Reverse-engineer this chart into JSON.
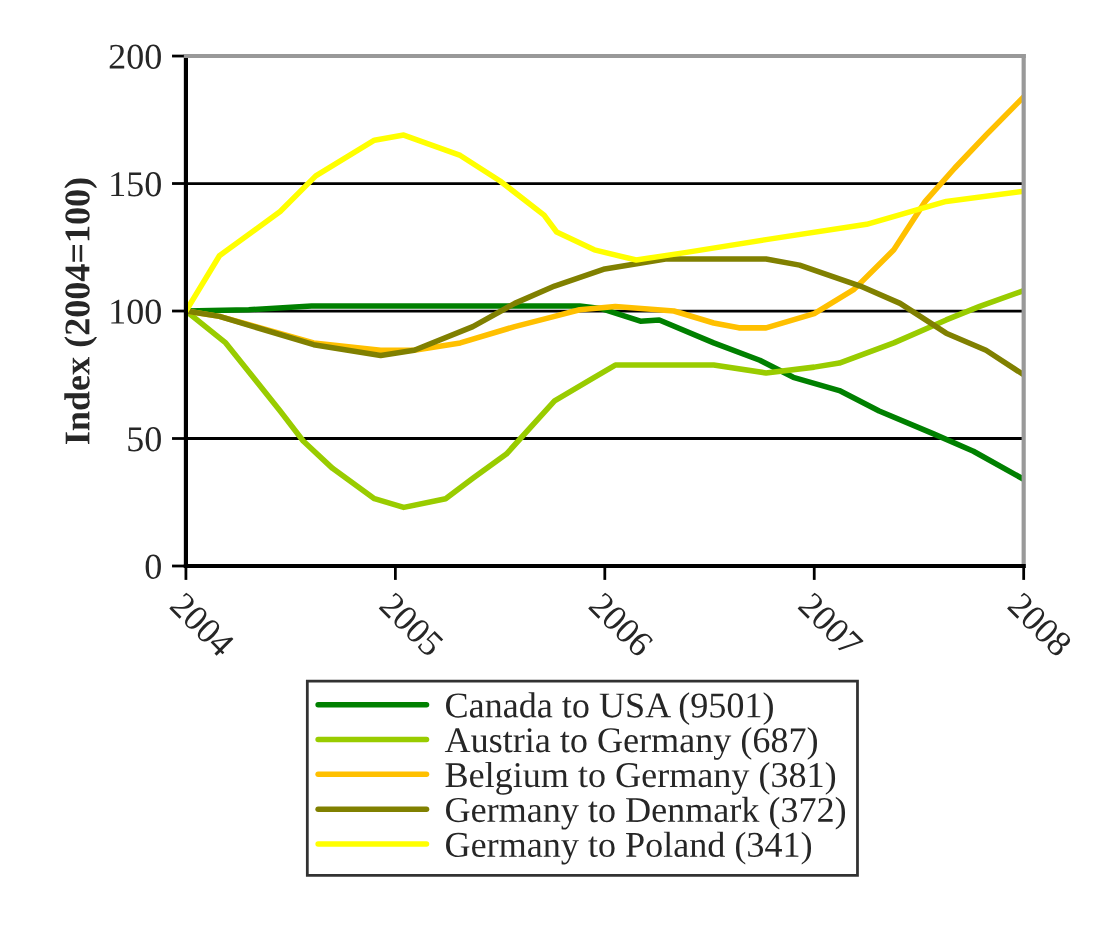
{
  "chart_data": {
    "type": "line",
    "ylabel": "Index (2004=100)",
    "xlim": [
      2004,
      2008
    ],
    "xticks": [
      2004,
      2005,
      2006,
      2007,
      2008
    ],
    "ylim": [
      0,
      200
    ],
    "yticks": [
      0,
      50,
      100,
      150,
      200
    ],
    "grid": "y",
    "legend": "bottom",
    "marker": "none",
    "line_style": "solid",
    "series": [
      {
        "name": "Canada to USA (9501)",
        "color": "#008000",
        "x": [
          2004,
          2004.3,
          2004.6,
          2005.0,
          2005.5,
          2005.88,
          2005.98,
          2006.17,
          2006.26,
          2006.52,
          2006.74,
          2006.9,
          2007.12,
          2007.31,
          2007.57,
          2007.76,
          2008
        ],
        "values": [
          100,
          100.5,
          102,
          102,
          102,
          102,
          101,
          96,
          96.5,
          87.5,
          80.7,
          74,
          68.8,
          60.8,
          51.8,
          45,
          34
        ]
      },
      {
        "name": "Austria to Germany (687)",
        "color": "#99cc00",
        "x": [
          2004,
          2004.19,
          2004.45,
          2004.56,
          2004.7,
          2004.9,
          2005.04,
          2005.24,
          2005.37,
          2005.53,
          2005.76,
          2005.95,
          2006.05,
          2006.52,
          2006.77,
          2007.0,
          2007.12,
          2007.38,
          2007.63,
          2007.79,
          2008
        ],
        "values": [
          100,
          87.5,
          60.8,
          49,
          38.3,
          26.4,
          23,
          26.4,
          34.4,
          43.9,
          64.8,
          74,
          78.8,
          78.8,
          75.7,
          78,
          79.6,
          87.5,
          96.5,
          101.8,
          108
        ]
      },
      {
        "name": "Belgium to Germany (381)",
        "color": "#ffc000",
        "x": [
          2004,
          2004.16,
          2004.61,
          2004.93,
          2005.09,
          2005.31,
          2005.57,
          2005.76,
          2005.88,
          2006.05,
          2006.33,
          2006.52,
          2006.64,
          2006.77,
          2007.0,
          2007.19,
          2007.38,
          2007.53,
          2007.67,
          2007.82,
          2008
        ],
        "values": [
          100,
          97.9,
          87.5,
          84.6,
          84.6,
          87.5,
          93.9,
          97.9,
          100.5,
          101.8,
          100,
          95.3,
          93.4,
          93.4,
          99,
          108.5,
          124,
          143,
          156,
          169,
          184
        ]
      },
      {
        "name": "Germany to Denmark (372)",
        "color": "#808000",
        "x": [
          2004,
          2004.16,
          2004.61,
          2004.93,
          2005.09,
          2005.37,
          2005.57,
          2005.76,
          2006.0,
          2006.29,
          2006.77,
          2006.93,
          2007.22,
          2007.41,
          2007.63,
          2007.82,
          2008
        ],
        "values": [
          100,
          97.9,
          86.8,
          82.6,
          84.6,
          93.9,
          103,
          109.8,
          116.5,
          120.4,
          120.4,
          118,
          109.8,
          103,
          91.3,
          84.6,
          75
        ]
      },
      {
        "name": "Germany to Poland (341)",
        "color": "#ffff00",
        "x": [
          2004,
          2004.16,
          2004.45,
          2004.62,
          2004.9,
          2005.04,
          2005.31,
          2005.5,
          2005.71,
          2005.77,
          2005.95,
          2006.15,
          2006.39,
          2006.77,
          2007.25,
          2007.63,
          2008
        ],
        "values": [
          100,
          121.7,
          139,
          153,
          167,
          169,
          161,
          151,
          137.6,
          131,
          124,
          120,
          123,
          128,
          134,
          143,
          147
        ]
      }
    ]
  }
}
